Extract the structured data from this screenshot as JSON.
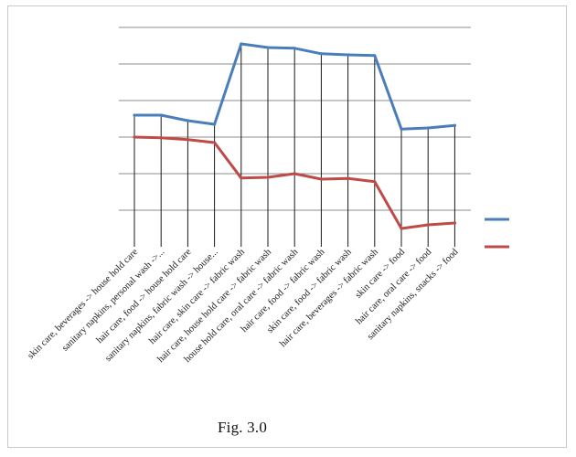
{
  "caption": "Fig. 3.0",
  "chart_data": {
    "type": "line",
    "categories": [
      "skin care, beverages -> house hold care",
      "sanitary napkins, personal wash ->...",
      "hair care, food -> house hold care",
      "sanitary napkins, fabric wash -> house...",
      "hair care, skin care -> fabric wash",
      "hair care, house hold care -> fabric wash",
      "house hold care, oral care -> fabric wash",
      "hair care, food -> fabric wash",
      "skin care, food -> fabric wash",
      "hair care, beverages -> fabric wash",
      "skin care -> food",
      "hair care, oral care -> food",
      "sanitary napkins, snacks -> food"
    ],
    "series": [
      {
        "color": "#4a7ebb",
        "values": [
          3.6,
          3.6,
          3.45,
          3.35,
          5.55,
          5.45,
          5.43,
          5.28,
          5.25,
          5.23,
          3.22,
          3.25,
          3.32
        ]
      },
      {
        "color": "#be4b48",
        "values": [
          3.0,
          2.98,
          2.93,
          2.85,
          1.88,
          1.9,
          2.0,
          1.85,
          1.87,
          1.78,
          0.5,
          0.6,
          0.65
        ]
      }
    ],
    "ylim": [
      0,
      6
    ],
    "gridlines": [
      1,
      2,
      3,
      4,
      5,
      6
    ],
    "grid": true,
    "legend": "right"
  }
}
